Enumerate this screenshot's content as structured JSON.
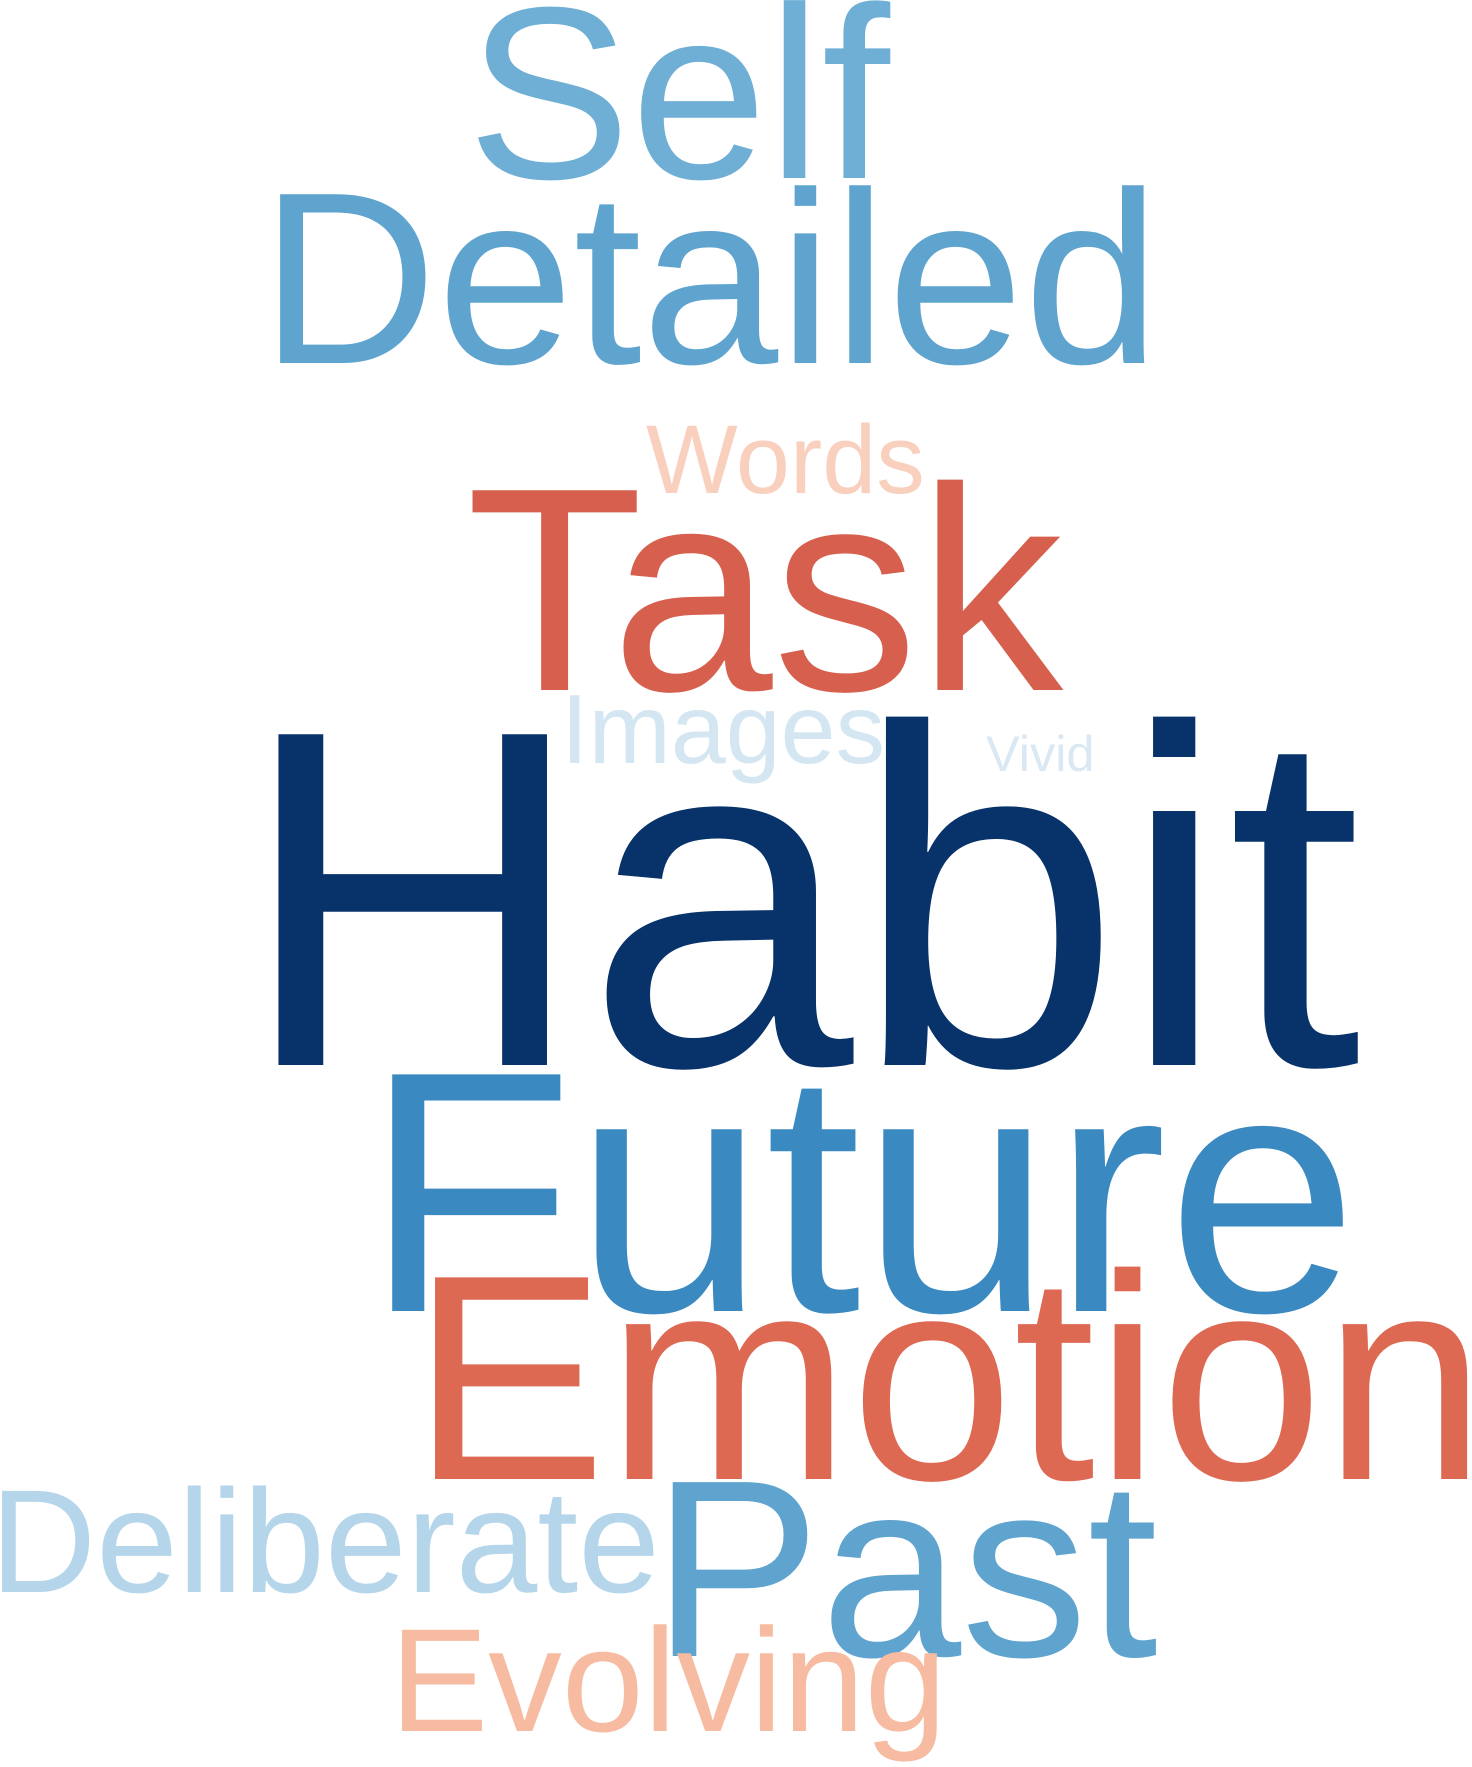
{
  "words": [
    {
      "text": "Self",
      "color": "#6fafd5"
    },
    {
      "text": "Detailed",
      "color": "#5fa3cf"
    },
    {
      "text": "Words",
      "color": "#f9d0bd"
    },
    {
      "text": "Task",
      "color": "#d6604d"
    },
    {
      "text": "Images",
      "color": "#d4e6f1"
    },
    {
      "text": "Vivid",
      "color": "#d9e8f2"
    },
    {
      "text": "Habit",
      "color": "#08336a"
    },
    {
      "text": "Future",
      "color": "#3a89c0"
    },
    {
      "text": "Emotion",
      "color": "#de6953"
    },
    {
      "text": "Deliberate",
      "color": "#b5d6ea"
    },
    {
      "text": "Past",
      "color": "#5fa3cf"
    },
    {
      "text": "Evolving",
      "color": "#f6bba0"
    }
  ]
}
